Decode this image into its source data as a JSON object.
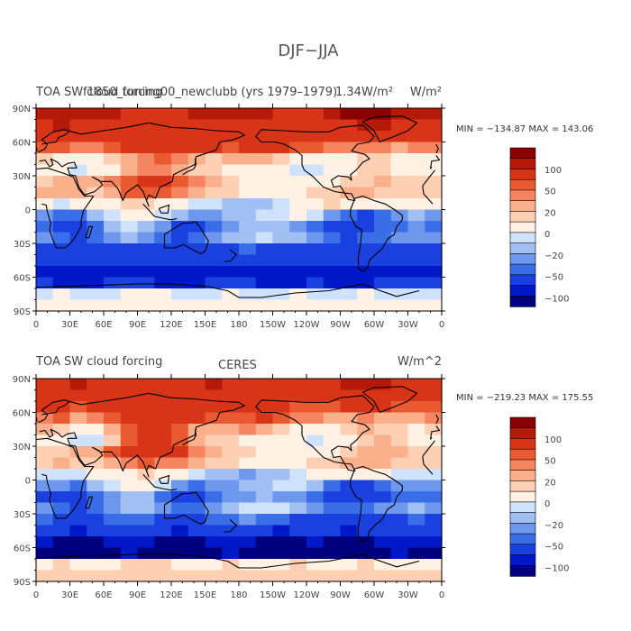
{
  "figure": {
    "title": "DJF−JJA"
  },
  "colors": {
    "levels_palette": [
      "#00007f",
      "#0018c8",
      "#1a40e0",
      "#3a6ee8",
      "#6e98ee",
      "#a2bff4",
      "#cfe2fb",
      "#fff2e4",
      "#fdd0b4",
      "#fbb08c",
      "#f58560",
      "#ea5a30",
      "#d83518",
      "#b51a08",
      "#8a0000"
    ],
    "missing": "#ffffff"
  },
  "chart_data": [
    {
      "type": "heatmap",
      "id": "top",
      "title": "TOA SW cloud forcing",
      "subtitle": "f1850_tuning00_newclubb (yrs 1979–1979)",
      "overprint_title": "1.34W/m²",
      "units": "W/m²",
      "stats": "MIN = −134.87  MAX = 143.06",
      "min": -134.87,
      "max": 143.06,
      "y_ticks": [
        "90N",
        "60N",
        "30N",
        "0",
        "30S",
        "60S",
        "90S"
      ],
      "x_ticks": [
        "0",
        "30E",
        "60E",
        "90E",
        "120E",
        "150E",
        "180",
        "150W",
        "120W",
        "90W",
        "60W",
        "30W",
        "0"
      ],
      "colorbar_levels": [
        -120,
        -100,
        -70,
        -50,
        -40,
        -30,
        -20,
        -10,
        0,
        10,
        20,
        30,
        40,
        50,
        70,
        100,
        120
      ],
      "colorbar_labels": [
        "100",
        "50",
        "20",
        "0",
        "−20",
        "−50",
        "−100"
      ],
      "lat_rows": [
        {
          "lat": 85,
          "values": [
            110,
            115,
            110,
            105,
            100,
            95,
            90,
            80,
            90,
            100,
            110,
            100,
            105,
            105,
            90,
            85,
            90,
            100,
            120,
            130,
            125,
            115,
            110,
            110
          ]
        },
        {
          "lat": 75,
          "values": [
            95,
            100,
            90,
            85,
            90,
            80,
            75,
            70,
            80,
            90,
            95,
            85,
            90,
            90,
            80,
            70,
            80,
            85,
            90,
            105,
            100,
            95,
            90,
            95
          ]
        },
        {
          "lat": 65,
          "values": [
            60,
            70,
            55,
            60,
            65,
            75,
            80,
            85,
            80,
            80,
            85,
            75,
            70,
            75,
            70,
            60,
            55,
            60,
            70,
            80,
            60,
            55,
            50,
            55
          ]
        },
        {
          "lat": 55,
          "values": [
            40,
            45,
            30,
            35,
            40,
            50,
            55,
            60,
            60,
            55,
            50,
            45,
            50,
            55,
            50,
            45,
            40,
            35,
            30,
            35,
            30,
            25,
            30,
            35
          ]
        },
        {
          "lat": 45,
          "values": [
            10,
            5,
            0,
            -5,
            10,
            25,
            35,
            40,
            30,
            20,
            15,
            20,
            25,
            20,
            10,
            0,
            -10,
            -5,
            5,
            15,
            10,
            5,
            0,
            5
          ]
        },
        {
          "lat": 35,
          "values": [
            -5,
            -10,
            -15,
            -10,
            5,
            20,
            30,
            35,
            25,
            15,
            10,
            5,
            0,
            -5,
            -10,
            -15,
            -20,
            -10,
            0,
            10,
            15,
            5,
            -5,
            -5
          ]
        },
        {
          "lat": 25,
          "values": [
            15,
            20,
            25,
            20,
            30,
            45,
            55,
            50,
            40,
            30,
            20,
            10,
            5,
            0,
            -5,
            -10,
            -5,
            0,
            10,
            15,
            20,
            15,
            10,
            10
          ]
        },
        {
          "lat": 15,
          "values": [
            20,
            25,
            20,
            15,
            25,
            40,
            45,
            40,
            35,
            25,
            15,
            10,
            5,
            5,
            0,
            5,
            10,
            15,
            20,
            20,
            15,
            10,
            10,
            15
          ]
        },
        {
          "lat": 5,
          "values": [
            -10,
            -15,
            -10,
            -5,
            0,
            10,
            15,
            5,
            -5,
            -15,
            -20,
            -25,
            -30,
            -25,
            -20,
            -10,
            0,
            10,
            5,
            0,
            -5,
            -10,
            -10,
            -10
          ]
        },
        {
          "lat": -5,
          "values": [
            -40,
            -45,
            -50,
            -30,
            -20,
            -10,
            -5,
            -15,
            -30,
            -40,
            -35,
            -30,
            -25,
            -20,
            -15,
            -10,
            -20,
            -40,
            -50,
            -60,
            -45,
            -35,
            -30,
            -35
          ]
        },
        {
          "lat": -15,
          "values": [
            -50,
            -60,
            -70,
            -45,
            -30,
            -20,
            -25,
            -40,
            -60,
            -55,
            -45,
            -35,
            -30,
            -25,
            -30,
            -35,
            -45,
            -60,
            -70,
            -60,
            -50,
            -45,
            -40,
            -45
          ]
        },
        {
          "lat": -25,
          "values": [
            -40,
            -50,
            -60,
            -50,
            -40,
            -30,
            -35,
            -45,
            -55,
            -50,
            -40,
            -30,
            -25,
            -20,
            -25,
            -30,
            -40,
            -50,
            -55,
            -50,
            -45,
            -40,
            -35,
            -40
          ]
        },
        {
          "lat": -35,
          "values": [
            -60,
            -70,
            -75,
            -70,
            -60,
            -55,
            -60,
            -65,
            -70,
            -65,
            -60,
            -55,
            -50,
            -55,
            -60,
            -65,
            -70,
            -75,
            -80,
            -75,
            -70,
            -65,
            -60,
            -65
          ]
        },
        {
          "lat": -45,
          "values": [
            -90,
            -95,
            -100,
            -95,
            -90,
            -85,
            -90,
            -95,
            -100,
            -95,
            -90,
            -85,
            -90,
            -95,
            -100,
            -95,
            -90,
            -95,
            -100,
            -95,
            -90,
            -85,
            -90,
            -90
          ]
        },
        {
          "lat": -55,
          "values": [
            -110,
            -115,
            -120,
            -115,
            -110,
            -105,
            -110,
            -115,
            -120,
            -115,
            -110,
            -105,
            -110,
            -115,
            -120,
            -115,
            -110,
            -115,
            -120,
            -115,
            -110,
            -105,
            -110,
            -110
          ]
        },
        {
          "lat": -65,
          "values": [
            -100,
            -105,
            -110,
            -105,
            -100,
            -95,
            -100,
            -105,
            -110,
            -105,
            -100,
            -95,
            -100,
            -105,
            -110,
            -105,
            -100,
            -105,
            -110,
            -105,
            -100,
            -95,
            -100,
            -100
          ]
        },
        {
          "lat": -75,
          "values": [
            -15,
            -10,
            -15,
            -20,
            -15,
            -10,
            -5,
            -10,
            -15,
            -20,
            -15,
            -10,
            -15,
            -20,
            -15,
            -10,
            -15,
            -20,
            -15,
            -10,
            -15,
            -20,
            -15,
            -15
          ]
        },
        {
          "lat": -85,
          "values": [
            -5,
            -5,
            -5,
            -5,
            -5,
            -5,
            -5,
            -5,
            -5,
            -5,
            -5,
            -5,
            -5,
            -5,
            -5,
            -5,
            -5,
            -5,
            -5,
            -5,
            -5,
            -5,
            -5,
            -5
          ]
        }
      ]
    },
    {
      "type": "heatmap",
      "id": "bottom",
      "title": "TOA SW cloud forcing",
      "subtitle": "CERES",
      "units": "W/m^2",
      "stats": "MIN = −219.23  MAX = 175.55",
      "min": -219.23,
      "max": 175.55,
      "y_ticks": [
        "90N",
        "60N",
        "30N",
        "0",
        "30S",
        "60S",
        "90S"
      ],
      "x_ticks": [
        "0",
        "30E",
        "60E",
        "90E",
        "120E",
        "150E",
        "180",
        "150W",
        "120W",
        "90W",
        "60W",
        "30W",
        "0"
      ],
      "colorbar_levels": [
        -120,
        -100,
        -70,
        -50,
        -40,
        -30,
        -20,
        -10,
        0,
        10,
        20,
        30,
        40,
        50,
        70,
        100,
        120
      ],
      "colorbar_labels": [
        "100",
        "50",
        "20",
        "0",
        "−20",
        "−50",
        "−100"
      ],
      "lat_rows": [
        {
          "lat": 85,
          "values": [
            90,
            95,
            100,
            95,
            90,
            85,
            80,
            75,
            85,
            95,
            100,
            95,
            90,
            85,
            80,
            75,
            80,
            90,
            100,
            110,
            105,
            95,
            90,
            90
          ]
        },
        {
          "lat": 75,
          "values": [
            80,
            85,
            80,
            75,
            80,
            75,
            70,
            65,
            75,
            85,
            90,
            80,
            85,
            80,
            70,
            65,
            70,
            75,
            80,
            90,
            85,
            80,
            75,
            80
          ]
        },
        {
          "lat": 65,
          "values": [
            50,
            55,
            45,
            50,
            60,
            70,
            75,
            80,
            75,
            70,
            75,
            65,
            60,
            65,
            55,
            45,
            40,
            45,
            55,
            60,
            50,
            45,
            40,
            45
          ]
        },
        {
          "lat": 55,
          "values": [
            35,
            40,
            25,
            30,
            45,
            55,
            60,
            65,
            60,
            50,
            45,
            40,
            45,
            50,
            45,
            35,
            30,
            25,
            25,
            30,
            25,
            20,
            25,
            30
          ]
        },
        {
          "lat": 45,
          "values": [
            20,
            15,
            0,
            -10,
            20,
            40,
            50,
            55,
            40,
            25,
            20,
            25,
            30,
            25,
            15,
            5,
            -5,
            0,
            10,
            20,
            15,
            10,
            5,
            10
          ]
        },
        {
          "lat": 35,
          "values": [
            0,
            -10,
            -20,
            -15,
            15,
            40,
            55,
            60,
            45,
            25,
            15,
            10,
            5,
            0,
            -5,
            -10,
            -15,
            -5,
            5,
            15,
            20,
            10,
            0,
            0
          ]
        },
        {
          "lat": 25,
          "values": [
            10,
            15,
            20,
            25,
            40,
            60,
            70,
            65,
            50,
            35,
            25,
            15,
            10,
            5,
            0,
            -5,
            0,
            5,
            15,
            20,
            25,
            20,
            15,
            15
          ]
        },
        {
          "lat": 15,
          "values": [
            15,
            20,
            15,
            10,
            20,
            35,
            40,
            35,
            30,
            20,
            15,
            10,
            5,
            5,
            0,
            5,
            10,
            15,
            20,
            25,
            20,
            15,
            10,
            15
          ]
        },
        {
          "lat": 5,
          "values": [
            -15,
            -20,
            -15,
            -10,
            -5,
            5,
            10,
            0,
            -10,
            -20,
            -25,
            -30,
            -35,
            -30,
            -25,
            -15,
            -5,
            5,
            0,
            -5,
            -10,
            -15,
            -15,
            -15
          ]
        },
        {
          "lat": -5,
          "values": [
            -35,
            -40,
            -45,
            -30,
            -20,
            -10,
            -10,
            -20,
            -35,
            -45,
            -40,
            -35,
            -30,
            -25,
            -20,
            -15,
            -25,
            -45,
            -55,
            -60,
            -50,
            -40,
            -35,
            -35
          ]
        },
        {
          "lat": -15,
          "values": [
            -55,
            -65,
            -75,
            -50,
            -35,
            -25,
            -30,
            -45,
            -65,
            -60,
            -50,
            -40,
            -35,
            -30,
            -35,
            -40,
            -50,
            -65,
            -75,
            -65,
            -55,
            -50,
            -45,
            -50
          ]
        },
        {
          "lat": -25,
          "values": [
            -35,
            -45,
            -55,
            -45,
            -35,
            -25,
            -30,
            -40,
            -50,
            -45,
            -35,
            -25,
            -20,
            -15,
            -20,
            -25,
            -35,
            -45,
            -50,
            -45,
            -40,
            -35,
            -30,
            -35
          ]
        },
        {
          "lat": -35,
          "values": [
            -50,
            -60,
            -65,
            -60,
            -50,
            -45,
            -50,
            -55,
            -60,
            -55,
            -50,
            -45,
            -40,
            -45,
            -50,
            -55,
            -60,
            -65,
            -70,
            -65,
            -60,
            -55,
            -50,
            -55
          ]
        },
        {
          "lat": -45,
          "values": [
            -95,
            -100,
            -105,
            -100,
            -95,
            -90,
            -95,
            -100,
            -105,
            -100,
            -95,
            -90,
            -95,
            -100,
            -105,
            -100,
            -95,
            -100,
            -105,
            -100,
            -95,
            -90,
            -95,
            -95
          ]
        },
        {
          "lat": -55,
          "values": [
            -120,
            -125,
            -130,
            -125,
            -120,
            -115,
            -120,
            -125,
            -130,
            -125,
            -120,
            -115,
            -120,
            -125,
            -130,
            -125,
            -120,
            -125,
            -130,
            -125,
            -120,
            -115,
            -120,
            -120
          ]
        },
        {
          "lat": -65,
          "values": [
            -125,
            -130,
            -135,
            -130,
            -125,
            -120,
            -125,
            -130,
            -135,
            -130,
            -125,
            -120,
            -125,
            -130,
            -135,
            -130,
            -125,
            -130,
            -135,
            -130,
            -125,
            -120,
            -125,
            -125
          ]
        },
        {
          "lat": -75,
          "values": [
            5,
            10,
            5,
            0,
            5,
            10,
            15,
            10,
            5,
            0,
            5,
            10,
            5,
            0,
            5,
            10,
            5,
            0,
            5,
            10,
            5,
            0,
            5,
            5
          ]
        },
        {
          "lat": -85,
          "values": [
            10,
            10,
            10,
            10,
            10,
            10,
            10,
            10,
            10,
            10,
            10,
            10,
            10,
            10,
            10,
            10,
            10,
            10,
            10,
            10,
            10,
            10,
            10,
            10
          ]
        }
      ]
    }
  ]
}
